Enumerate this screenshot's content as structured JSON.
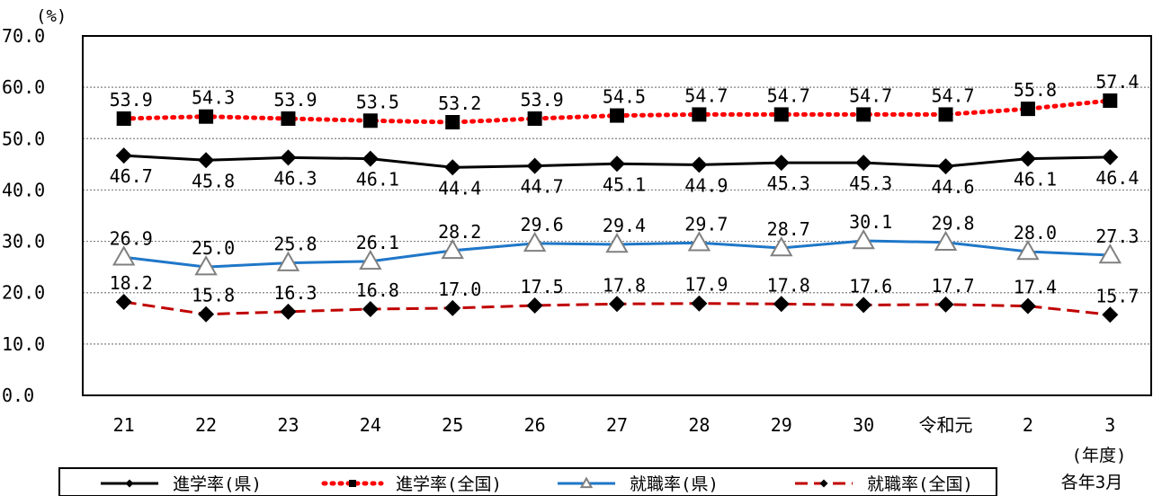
{
  "chart_data": {
    "type": "line",
    "title": "",
    "xlabel": "",
    "ylabel": "",
    "y_unit_label": "(%)",
    "x_unit_label": "(年度)",
    "note": "各年3月",
    "ylim": [
      0,
      70
    ],
    "y_ticks": [
      "0.0",
      "10.0",
      "20.0",
      "30.0",
      "40.0",
      "50.0",
      "60.0",
      "70.0"
    ],
    "y_tick_values": [
      0,
      10,
      20,
      30,
      40,
      50,
      60,
      70
    ],
    "grid": "horizontal-dotted",
    "legend_position": "bottom",
    "categories": [
      "21",
      "22",
      "23",
      "24",
      "25",
      "26",
      "27",
      "28",
      "29",
      "30",
      "令和元",
      "2",
      "3"
    ],
    "series": [
      {
        "name": "進学率(県)",
        "color": "#000000",
        "line": "solid",
        "marker": "diamond",
        "label_position": "below",
        "values": [
          46.7,
          45.8,
          46.3,
          46.1,
          44.4,
          44.7,
          45.1,
          44.9,
          45.3,
          45.3,
          44.6,
          46.1,
          46.4
        ],
        "labels": [
          "46.7",
          "45.8",
          "46.3",
          "46.1",
          "44.4",
          "44.7",
          "45.1",
          "44.9",
          "45.3",
          "45.3",
          "44.6",
          "46.1",
          "46.4"
        ]
      },
      {
        "name": "進学率(全国)",
        "color": "#ff0000",
        "line": "dotted",
        "marker": "square",
        "label_position": "above",
        "values": [
          53.9,
          54.3,
          53.9,
          53.5,
          53.2,
          53.9,
          54.5,
          54.7,
          54.7,
          54.7,
          54.7,
          55.8,
          57.4
        ],
        "labels": [
          "53.9",
          "54.3",
          "53.9",
          "53.5",
          "53.2",
          "53.9",
          "54.5",
          "54.7",
          "54.7",
          "54.7",
          "54.7",
          "55.8",
          "57.4"
        ]
      },
      {
        "name": "就職率(県)",
        "color": "#1f77c8",
        "line": "solid",
        "marker": "triangle",
        "label_position": "above",
        "values": [
          26.9,
          25.0,
          25.8,
          26.1,
          28.2,
          29.6,
          29.4,
          29.7,
          28.7,
          30.1,
          29.8,
          28.0,
          27.3
        ],
        "labels": [
          "26.9",
          "25.0",
          "25.8",
          "26.1",
          "28.2",
          "29.6",
          "29.4",
          "29.7",
          "28.7",
          "30.1",
          "29.8",
          "28.0",
          "27.3"
        ]
      },
      {
        "name": "就職率(全国)",
        "color": "#c00000",
        "line": "dashed",
        "marker": "diamond",
        "label_position": "above",
        "values": [
          18.2,
          15.8,
          16.3,
          16.8,
          17.0,
          17.5,
          17.8,
          17.9,
          17.8,
          17.6,
          17.7,
          17.4,
          15.7
        ],
        "labels": [
          "18.2",
          "15.8",
          "16.3",
          "16.8",
          "17.0",
          "17.5",
          "17.8",
          "17.9",
          "17.8",
          "17.6",
          "17.7",
          "17.4",
          "15.7"
        ]
      }
    ]
  }
}
